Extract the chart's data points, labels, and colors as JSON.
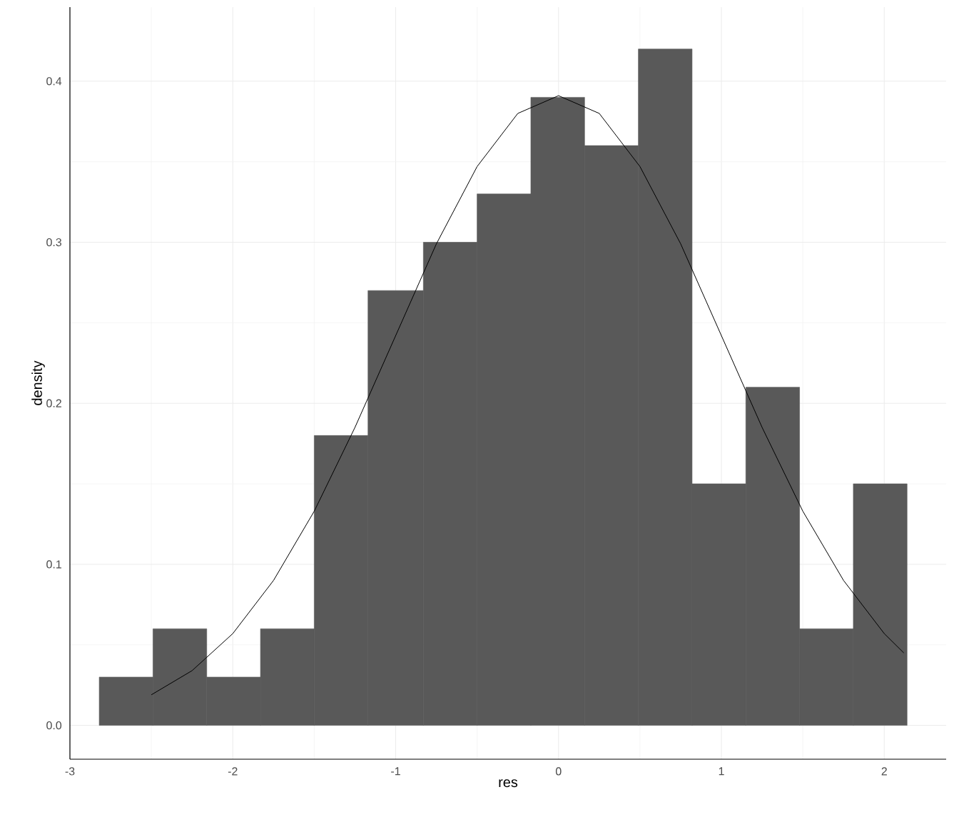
{
  "chart_data": {
    "type": "histogram",
    "xlabel": "res",
    "ylabel": "density",
    "series": [
      {
        "color": "#595959",
        "bins": [
          -2.82,
          -2.49,
          -2.16,
          -1.83,
          -1.5,
          -1.17,
          -0.83,
          -0.5,
          -0.17,
          0.16,
          0.49,
          0.82,
          1.15,
          1.48,
          1.81,
          2.14
        ],
        "values": [
          0.03,
          0.06,
          0.03,
          0.06,
          0.18,
          0.27,
          0.3,
          0.33,
          0.39,
          0.36,
          0.42,
          0.15,
          0.21,
          0.06,
          0.15
        ]
      },
      {
        "type": "line",
        "color": "#000000",
        "x": [
          -2.5,
          -2.25,
          -2.0,
          -1.75,
          -1.5,
          -1.25,
          -1.0,
          -0.75,
          -0.5,
          -0.25,
          0,
          0.25,
          0.5,
          0.75,
          1.0,
          1.25,
          1.5,
          1.75,
          2.0,
          2.12
        ],
        "values": [
          0.019,
          0.034,
          0.057,
          0.09,
          0.133,
          0.185,
          0.242,
          0.299,
          0.347,
          0.38,
          0.391,
          0.38,
          0.347,
          0.299,
          0.242,
          0.185,
          0.133,
          0.09,
          0.057,
          0.045
        ]
      }
    ],
    "xlim": [
      -3,
      2.38
    ],
    "ylim": [
      -0.021,
      0.446
    ],
    "xticks": [
      -3,
      -2,
      -1,
      0,
      1,
      2
    ],
    "yticks": [
      {
        "value": 0,
        "label": "0.0"
      },
      {
        "value": 0.1,
        "label": "0.1"
      },
      {
        "value": 0.2,
        "label": "0.2"
      },
      {
        "value": 0.3,
        "label": "0.3"
      },
      {
        "value": 0.4,
        "label": "0.4"
      }
    ],
    "grid": true
  }
}
